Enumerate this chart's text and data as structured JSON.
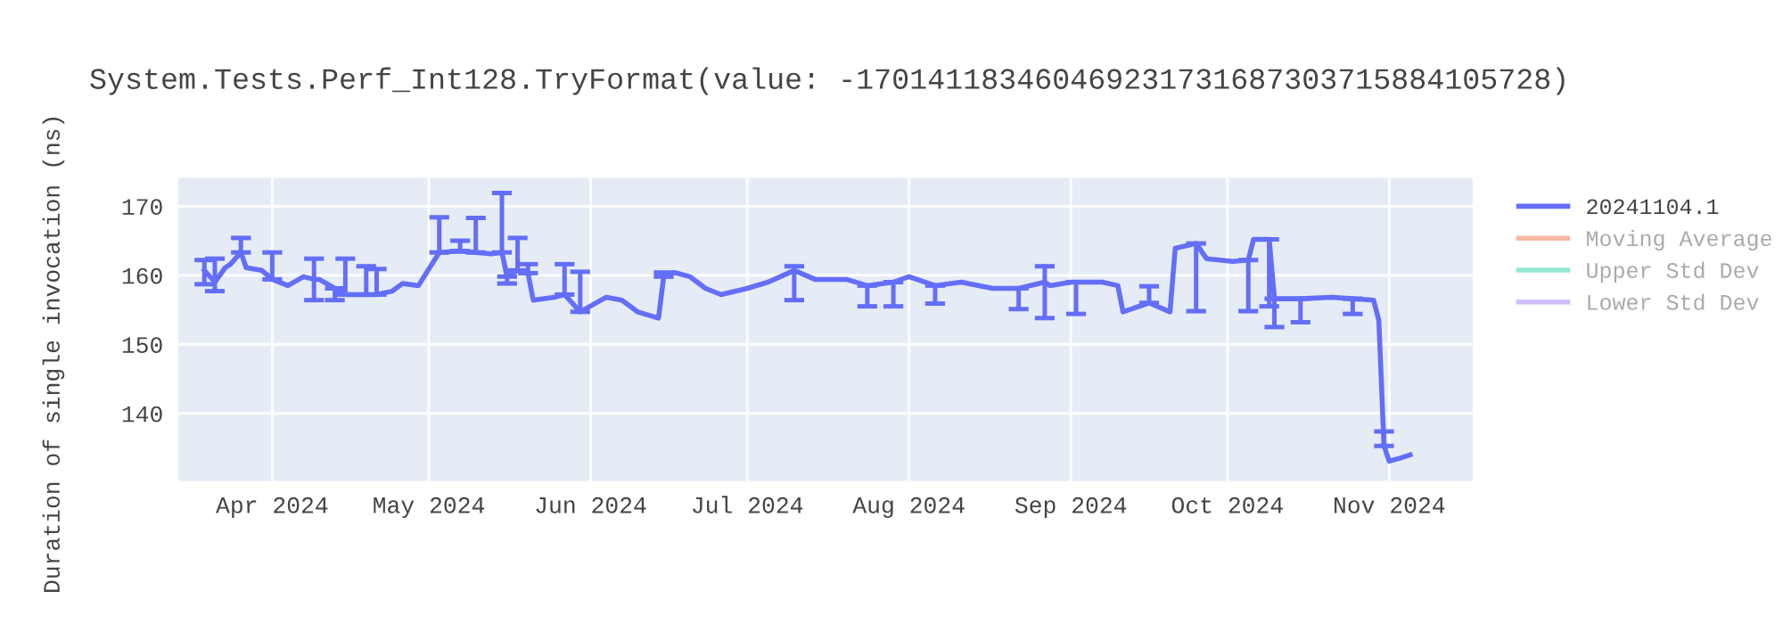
{
  "chart_data": {
    "type": "line",
    "title": "System.Tests.Perf_Int128.TryFormat(value: -170141183460469231731687303715884105728)",
    "ylabel": "Duration of single invocation (ns)",
    "xlim": [
      "2024-03-14",
      "2024-11-17"
    ],
    "xticks": [
      {
        "value": "2024-04-01",
        "label": "Apr 2024"
      },
      {
        "value": "2024-05-01",
        "label": "May 2024"
      },
      {
        "value": "2024-06-01",
        "label": "Jun 2024"
      },
      {
        "value": "2024-07-01",
        "label": "Jul 2024"
      },
      {
        "value": "2024-08-01",
        "label": "Aug 2024"
      },
      {
        "value": "2024-09-01",
        "label": "Sep 2024"
      },
      {
        "value": "2024-10-01",
        "label": "Oct 2024"
      },
      {
        "value": "2024-11-01",
        "label": "Nov 2024"
      }
    ],
    "ylim": [
      130.2,
      174.1
    ],
    "yticks": [
      140,
      150,
      160,
      170
    ],
    "grid": true,
    "legend": "right",
    "marker": "none",
    "line_style": "solid",
    "series": [
      {
        "name": "20241104.1",
        "color": "#636efa",
        "x": [
          "2024-03-19",
          "2024-03-21",
          "2024-03-23",
          "2024-03-24",
          "2024-03-26",
          "2024-03-27",
          "2024-03-30",
          "2024-04-01",
          "2024-04-04",
          "2024-04-07",
          "2024-04-09",
          "2024-04-10",
          "2024-04-13",
          "2024-04-15",
          "2024-04-19",
          "2024-04-21",
          "2024-04-24",
          "2024-04-26",
          "2024-04-29",
          "2024-05-03",
          "2024-05-07",
          "2024-05-10",
          "2024-05-13",
          "2024-05-15",
          "2024-05-16",
          "2024-05-18",
          "2024-05-20",
          "2024-05-21",
          "2024-05-25",
          "2024-05-27",
          "2024-05-30",
          "2024-06-03",
          "2024-06-04",
          "2024-06-07",
          "2024-06-10",
          "2024-06-14",
          "2024-06-15",
          "2024-06-17",
          "2024-06-20",
          "2024-06-23",
          "2024-06-26",
          "2024-07-01",
          "2024-07-05",
          "2024-07-10",
          "2024-07-14",
          "2024-07-20",
          "2024-07-24",
          "2024-07-29",
          "2024-08-01",
          "2024-08-06",
          "2024-08-11",
          "2024-08-17",
          "2024-08-22",
          "2024-08-27",
          "2024-08-28",
          "2024-09-01",
          "2024-09-02",
          "2024-09-07",
          "2024-09-10",
          "2024-09-11",
          "2024-09-16",
          "2024-09-20",
          "2024-09-21",
          "2024-09-25",
          "2024-09-27",
          "2024-10-02",
          "2024-10-05",
          "2024-10-06",
          "2024-10-09",
          "2024-10-10",
          "2024-10-15",
          "2024-10-21",
          "2024-10-25",
          "2024-10-29",
          "2024-10-30",
          "2024-10-31",
          "2024-11-01",
          "2024-11-03",
          "2024-11-05"
        ],
        "values": [
          160.7,
          159,
          161.1,
          161.6,
          163.3,
          161.1,
          160.7,
          159.4,
          158.5,
          159.8,
          159.4,
          159.4,
          158.1,
          157.2,
          157.2,
          157.2,
          157.7,
          158.8,
          158.5,
          163.3,
          163.5,
          163.3,
          163.1,
          163.3,
          159.8,
          160.7,
          160.3,
          156.4,
          156.8,
          157.2,
          154.7,
          156.4,
          156.8,
          156.4,
          154.7,
          153.8,
          159.8,
          160.4,
          159.8,
          158.1,
          157.2,
          158.1,
          159,
          160.7,
          159.4,
          159.4,
          158.5,
          159,
          159.8,
          158.5,
          159,
          158.1,
          158.1,
          159,
          158.5,
          159,
          159,
          159,
          158.5,
          154.7,
          156,
          154.7,
          163.9,
          164.6,
          162.4,
          162,
          162.2,
          165.2,
          165.2,
          156.6,
          156.6,
          156.8,
          156.6,
          156.4,
          153.5,
          135.3,
          133.1,
          133.5,
          134
        ],
        "errors": [
          [
            158.7,
            162.2
          ],
          [
            157.7,
            162.4
          ],
          null,
          null,
          [
            163.3,
            165.4
          ],
          null,
          null,
          [
            159.4,
            163.3
          ],
          null,
          null,
          [
            156.4,
            162.4
          ],
          null,
          [
            156.4,
            158.1
          ],
          [
            157.2,
            162.4
          ],
          [
            157.2,
            161.3
          ],
          [
            157.2,
            160.9
          ],
          null,
          null,
          null,
          [
            163.3,
            168.4
          ],
          [
            163.5,
            165
          ],
          [
            163.3,
            168.3
          ],
          null,
          [
            163.3,
            171.9
          ],
          [
            158.8,
            159.8
          ],
          [
            160.7,
            165.4
          ],
          [
            160.3,
            161.6
          ],
          null,
          null,
          [
            157.2,
            161.6
          ],
          [
            154.7,
            160.5
          ],
          null,
          null,
          null,
          null,
          null,
          [
            159.8,
            160.4
          ],
          null,
          null,
          null,
          null,
          null,
          null,
          [
            156.4,
            161.3
          ],
          null,
          null,
          [
            155.5,
            158.5
          ],
          [
            155.5,
            159
          ],
          null,
          [
            155.9,
            158.5
          ],
          null,
          null,
          [
            155.1,
            158.1
          ],
          [
            153.8,
            161.3
          ],
          null,
          null,
          [
            154.4,
            159
          ],
          null,
          null,
          null,
          [
            156,
            158.4
          ],
          null,
          null,
          [
            154.8,
            164.6
          ],
          null,
          null,
          [
            154.8,
            162.2
          ],
          null,
          [
            155.5,
            165.2
          ],
          [
            152.5,
            156.6
          ],
          [
            153.2,
            156.6
          ],
          null,
          [
            154.4,
            156.6
          ],
          null,
          null,
          [
            135.3,
            137.4
          ],
          null,
          null,
          null
        ]
      },
      {
        "name": "Moving Average",
        "color": "#f7b6a6"
      },
      {
        "name": "Upper Std Dev",
        "color": "#93e8cf"
      },
      {
        "name": "Lower Std Dev",
        "color": "#d2befa"
      }
    ]
  }
}
